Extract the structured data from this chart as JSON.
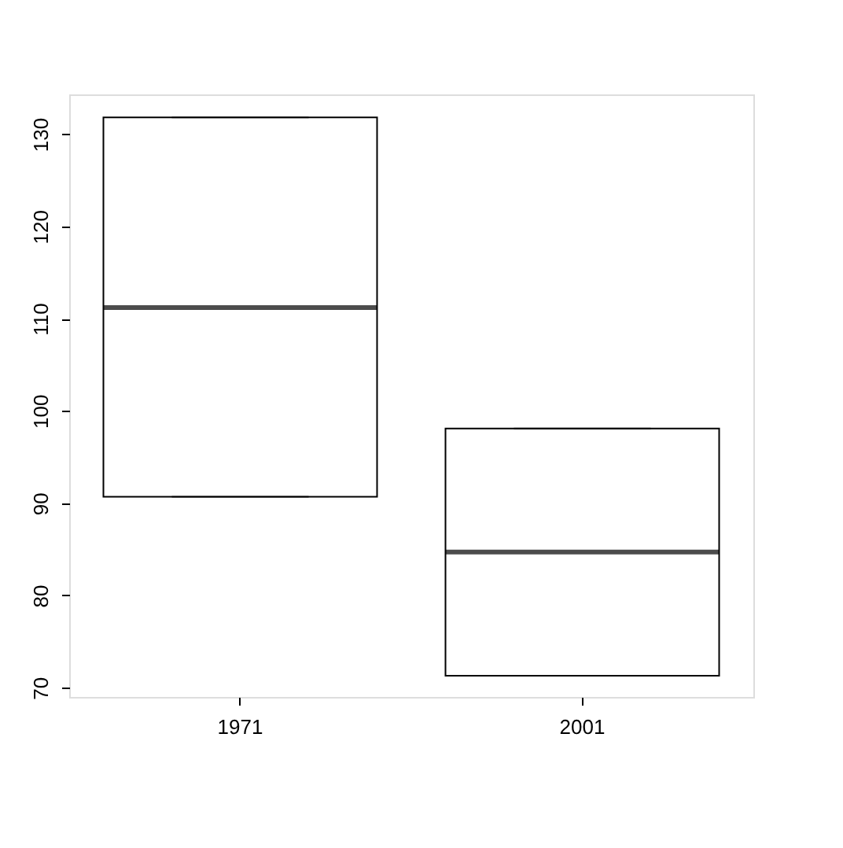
{
  "chart_data": {
    "type": "box",
    "categories": [
      "1971",
      "2001"
    ],
    "boxes": [
      {
        "low": 90.7,
        "q1": 90.7,
        "median": 111.2,
        "q3": 131.8,
        "high": 131.8
      },
      {
        "low": 71.3,
        "q1": 71.3,
        "median": 84.7,
        "q3": 98.1,
        "high": 98.1
      }
    ],
    "ylim": [
      69,
      134.3
    ],
    "yticks": [
      70,
      80,
      90,
      100,
      110,
      120,
      130
    ]
  }
}
